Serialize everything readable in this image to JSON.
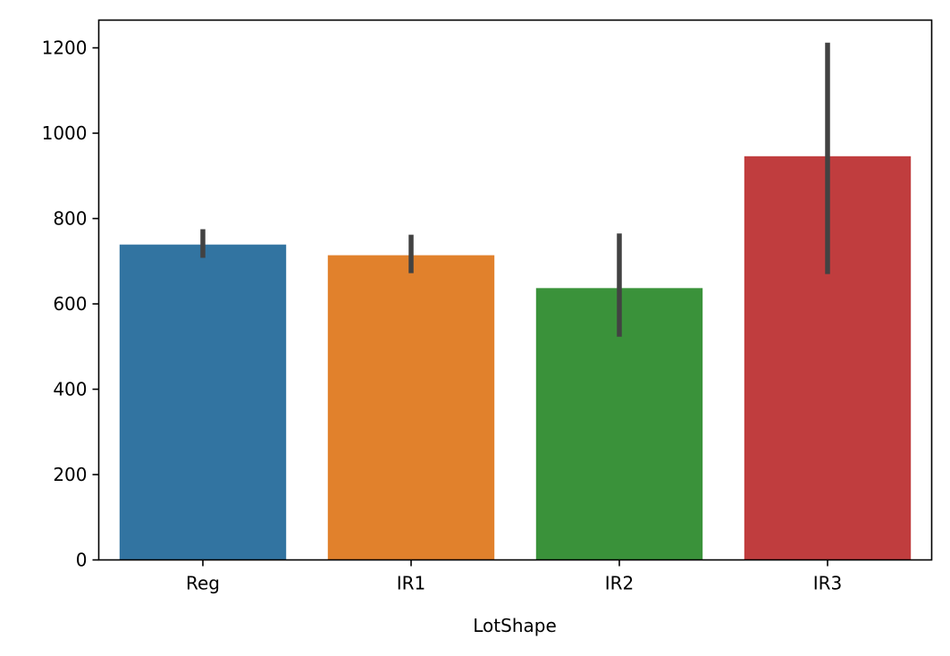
{
  "chart_data": {
    "type": "bar",
    "title": "",
    "xlabel": "LotShape",
    "ylabel": "",
    "categories": [
      "Reg",
      "IR1",
      "IR2",
      "IR3"
    ],
    "values": [
      739,
      714,
      637,
      946
    ],
    "error_bars": [
      {
        "low": 708,
        "high": 775
      },
      {
        "low": 672,
        "high": 762
      },
      {
        "low": 523,
        "high": 765
      },
      {
        "low": 670,
        "high": 1212
      }
    ],
    "colors": [
      "#3274a1",
      "#e1812c",
      "#3a923a",
      "#c03d3e"
    ],
    "error_color": "#424242",
    "ylim": [
      0,
      1265
    ],
    "yticks": [
      0,
      200,
      400,
      600,
      800,
      1000,
      1200
    ],
    "grid": false,
    "legend": "none"
  }
}
